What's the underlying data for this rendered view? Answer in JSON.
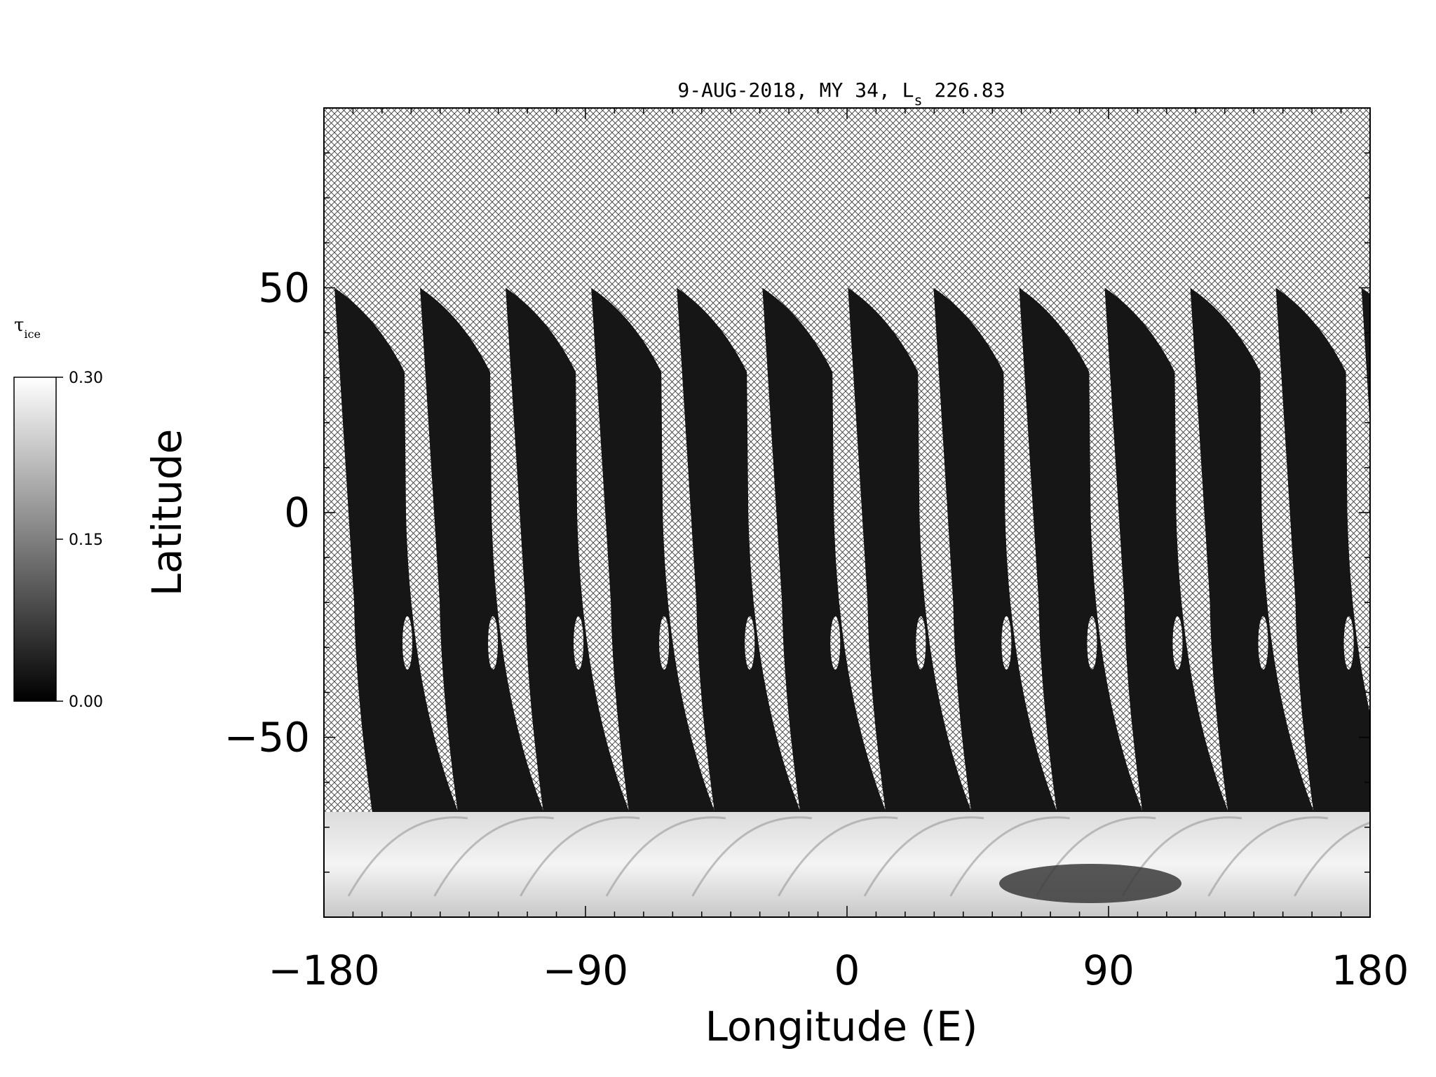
{
  "title": {
    "prefix": "9-AUG-2018, MY 34,  L",
    "subscript": "s",
    "suffix": " 226.83"
  },
  "axes": {
    "xlabel": "Longitude (E)",
    "ylabel": "Latitude",
    "xticks": [
      {
        "value": -180,
        "label": "−180"
      },
      {
        "value": -90,
        "label": "−90"
      },
      {
        "value": 0,
        "label": "0"
      },
      {
        "value": 90,
        "label": "90"
      },
      {
        "value": 180,
        "label": "180"
      }
    ],
    "yticks": [
      {
        "value": -50,
        "label": "−50"
      },
      {
        "value": 0,
        "label": "0"
      },
      {
        "value": 50,
        "label": "50"
      }
    ],
    "xlim": [
      -180,
      180
    ],
    "ylim": [
      -90,
      90
    ]
  },
  "colorbar": {
    "label_symbol": "τ",
    "label_subscript": "ice",
    "ticks": [
      {
        "value": 0.3,
        "label": "0.30"
      },
      {
        "value": 0.15,
        "label": "0.15"
      },
      {
        "value": 0.0,
        "label": "0.00"
      }
    ],
    "range": [
      0.0,
      0.3
    ],
    "colormap": "grayscale"
  },
  "map_data": {
    "type": "heatmap",
    "missing_data_pattern": "crosshatch",
    "swath_count": 13,
    "swath_top_latitude": 50,
    "polar_cap_latitude_range": [
      -90,
      -68
    ],
    "polar_cap_tau_range": [
      0.2,
      0.3
    ],
    "swath_tau_typical": 0.02
  }
}
